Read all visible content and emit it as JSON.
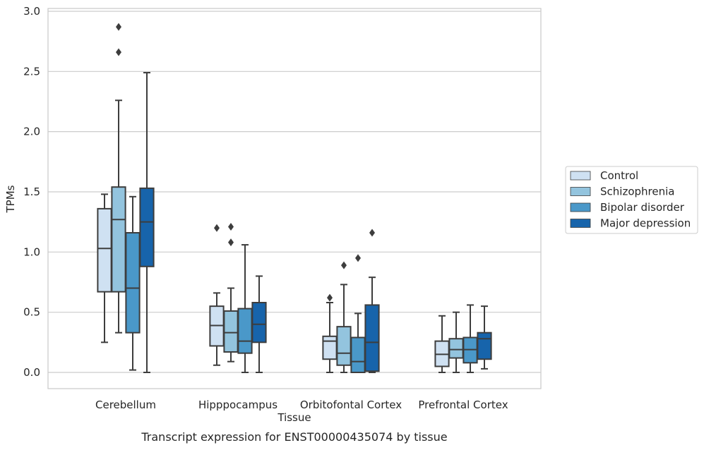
{
  "chart_data": {
    "type": "box",
    "title": "",
    "caption": "Transcript expression for ENST00000435074 by tissue",
    "xlabel": "Tissue",
    "ylabel": "TPMs",
    "ylim": [
      -0.13,
      3.02
    ],
    "yticks": [
      0.0,
      0.5,
      1.0,
      1.5,
      2.0,
      2.5,
      3.0
    ],
    "ytick_labels": [
      "0.0",
      "0.5",
      "1.0",
      "1.5",
      "2.0",
      "2.5",
      "3.0"
    ],
    "grid": "horizontal",
    "legend_position": "right",
    "categories": [
      "Cerebellum",
      "Hipppocampus",
      "Orbitofontal Cortex",
      "Prefrontal Cortex"
    ],
    "series": [
      {
        "name": "Control",
        "color": "#cfe1f2",
        "boxes": [
          {
            "whislo": 0.25,
            "q1": 0.67,
            "med": 1.03,
            "q3": 1.36,
            "whishi": 1.48,
            "fliers": []
          },
          {
            "whislo": 0.06,
            "q1": 0.22,
            "med": 0.39,
            "q3": 0.55,
            "whishi": 0.66,
            "fliers": [
              1.2
            ]
          },
          {
            "whislo": 0.0,
            "q1": 0.11,
            "med": 0.26,
            "q3": 0.3,
            "whishi": 0.58,
            "fliers": [
              0.62
            ]
          },
          {
            "whislo": 0.0,
            "q1": 0.05,
            "med": 0.15,
            "q3": 0.26,
            "whishi": 0.47,
            "fliers": []
          }
        ]
      },
      {
        "name": "Schizophrenia",
        "color": "#93c4de",
        "boxes": [
          {
            "whislo": 0.33,
            "q1": 0.67,
            "med": 1.27,
            "q3": 1.54,
            "whishi": 2.26,
            "fliers": [
              2.66,
              2.87
            ]
          },
          {
            "whislo": 0.09,
            "q1": 0.17,
            "med": 0.33,
            "q3": 0.51,
            "whishi": 0.7,
            "fliers": [
              1.08,
              1.21
            ]
          },
          {
            "whislo": 0.0,
            "q1": 0.06,
            "med": 0.16,
            "q3": 0.38,
            "whishi": 0.73,
            "fliers": [
              0.89
            ]
          },
          {
            "whislo": 0.0,
            "q1": 0.12,
            "med": 0.19,
            "q3": 0.28,
            "whishi": 0.5,
            "fliers": []
          }
        ]
      },
      {
        "name": "Bipolar disorder",
        "color": "#4a98c9",
        "boxes": [
          {
            "whislo": 0.02,
            "q1": 0.33,
            "med": 0.7,
            "q3": 1.16,
            "whishi": 1.46,
            "fliers": []
          },
          {
            "whislo": 0.0,
            "q1": 0.16,
            "med": 0.26,
            "q3": 0.53,
            "whishi": 1.06,
            "fliers": []
          },
          {
            "whislo": 0.0,
            "q1": 0.0,
            "med": 0.09,
            "q3": 0.29,
            "whishi": 0.49,
            "fliers": [
              0.95
            ]
          },
          {
            "whislo": 0.0,
            "q1": 0.08,
            "med": 0.19,
            "q3": 0.29,
            "whishi": 0.56,
            "fliers": []
          }
        ]
      },
      {
        "name": "Major depression",
        "color": "#1764ab",
        "boxes": [
          {
            "whislo": 0.0,
            "q1": 0.88,
            "med": 1.25,
            "q3": 1.53,
            "whishi": 2.49,
            "fliers": []
          },
          {
            "whislo": 0.0,
            "q1": 0.25,
            "med": 0.4,
            "q3": 0.58,
            "whishi": 0.8,
            "fliers": []
          },
          {
            "whislo": 0.0,
            "q1": 0.01,
            "med": 0.25,
            "q3": 0.56,
            "whishi": 0.79,
            "fliers": [
              1.16
            ]
          },
          {
            "whislo": 0.03,
            "q1": 0.11,
            "med": 0.28,
            "q3": 0.33,
            "whishi": 0.55,
            "fliers": []
          }
        ]
      }
    ]
  }
}
